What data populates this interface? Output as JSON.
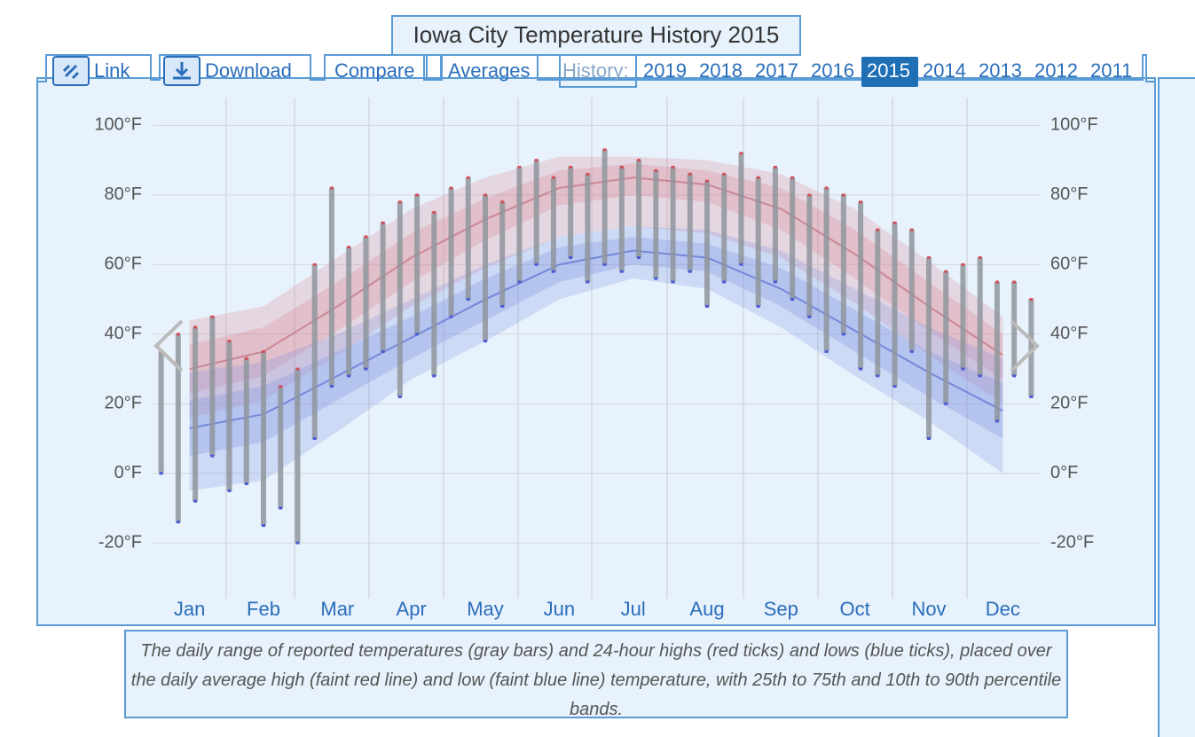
{
  "chart_data": {
    "type": "range",
    "title": "Iowa City Temperature History 2015",
    "categories": [
      "Jan",
      "Feb",
      "Mar",
      "Apr",
      "May",
      "Jun",
      "Jul",
      "Aug",
      "Sep",
      "Oct",
      "Nov",
      "Dec"
    ],
    "ylim": [
      -36,
      108
    ],
    "yticks": [
      {
        "value": -20,
        "label": "-20°F"
      },
      {
        "value": 0,
        "label": "0°F"
      },
      {
        "value": 20,
        "label": "20°F"
      },
      {
        "value": 40,
        "label": "40°F"
      },
      {
        "value": 60,
        "label": "60°F"
      },
      {
        "value": 80,
        "label": "80°F"
      },
      {
        "value": 100,
        "label": "100°F"
      }
    ],
    "grid": true,
    "bands": [
      {
        "color": "rgba(215,120,135,0.22)",
        "lower": [
          16,
          21,
          34,
          48,
          59,
          68,
          71,
          69,
          62,
          49,
          34,
          20
        ],
        "upper": [
          44,
          48,
          62,
          76,
          85,
          91,
          91,
          90,
          86,
          76,
          61,
          45
        ]
      },
      {
        "color": "rgba(215,120,135,0.25)",
        "lower": [
          23,
          28,
          41,
          55,
          67,
          77,
          80,
          78,
          70,
          56,
          41,
          27
        ],
        "upper": [
          37,
          42,
          55,
          69,
          79,
          87,
          89,
          87,
          82,
          70,
          55,
          40
        ]
      },
      {
        "color": "rgba(110,130,225,0.22)",
        "lower": [
          -5,
          -2,
          12,
          27,
          38,
          50,
          56,
          53,
          42,
          28,
          15,
          0
        ],
        "upper": [
          29,
          32,
          40,
          50,
          60,
          68,
          71,
          70,
          64,
          53,
          42,
          33
        ]
      },
      {
        "color": "rgba(110,130,225,0.25)",
        "lower": [
          5,
          9,
          21,
          33,
          44,
          55,
          60,
          58,
          48,
          35,
          22,
          10
        ],
        "upper": [
          21,
          25,
          35,
          45,
          56,
          65,
          68,
          66,
          59,
          47,
          35,
          26
        ]
      }
    ],
    "series": [
      {
        "color": "#c0707c",
        "values": [
          30,
          35,
          48,
          62,
          73,
          82,
          85,
          83,
          76,
          63,
          48,
          34
        ]
      },
      {
        "color": "#5a6fd0",
        "values": [
          13,
          17,
          28,
          39,
          50,
          60,
          64,
          62,
          53,
          41,
          29,
          18
        ]
      }
    ],
    "daily": {
      "color": "#8f959c",
      "high_color": "#d0505a",
      "low_color": "#4a5ad8",
      "low": [
        0,
        -14,
        -8,
        5,
        -5,
        -3,
        -15,
        -10,
        -20,
        10,
        25,
        28,
        30,
        35,
        22,
        40,
        28,
        45,
        50,
        38,
        48,
        55,
        60,
        58,
        62,
        55,
        60,
        58,
        62,
        56,
        55,
        58,
        48,
        55,
        60,
        48,
        55,
        50,
        45,
        35,
        40,
        30,
        28,
        25,
        35,
        10,
        20,
        30,
        28,
        15,
        28,
        22
      ],
      "high": [
        35,
        40,
        42,
        45,
        38,
        33,
        35,
        25,
        30,
        60,
        82,
        65,
        68,
        72,
        78,
        80,
        75,
        82,
        85,
        80,
        78,
        88,
        90,
        85,
        88,
        86,
        93,
        88,
        90,
        87,
        88,
        86,
        84,
        86,
        92,
        85,
        88,
        85,
        80,
        82,
        80,
        78,
        70,
        72,
        70,
        62,
        58,
        60,
        62,
        55,
        55,
        50
      ]
    }
  },
  "nav": {
    "buttons": [
      "Link",
      "Download",
      "Compare",
      "Averages"
    ],
    "history_label": "History:",
    "years": [
      "2019",
      "2018",
      "2017",
      "2016",
      "2015",
      "2014",
      "2013",
      "2012",
      "2011"
    ],
    "selected": "2015"
  },
  "caption": "The daily range of reported temperatures (gray bars) and 24-hour highs (red ticks) and lows (blue ticks), placed over the daily average high (faint red line) and low (faint blue line) temperature, with 25th to 75th and 10th to 90th percentile bands."
}
